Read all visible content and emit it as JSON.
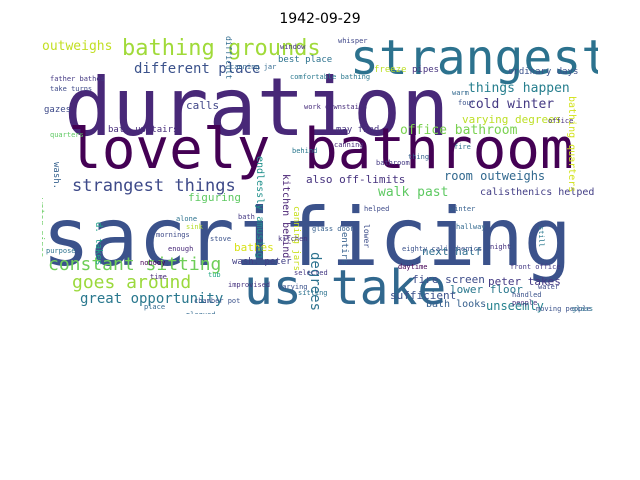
{
  "title": "1942-09-29",
  "words": [
    {
      "text": "sacrificing",
      "color": "#3b528b"
    },
    {
      "text": "duration",
      "color": "#482878"
    },
    {
      "text": "lovely bathroom",
      "color": "#440154"
    },
    {
      "text": "us take",
      "color": "#31688e"
    },
    {
      "text": "strangest",
      "color": "#2c728e"
    },
    {
      "text": "bathing grounds",
      "color": "#a0da39"
    },
    {
      "text": "strangest things",
      "color": "#3e4a89"
    },
    {
      "text": "constant sitting",
      "color": "#6ece58"
    },
    {
      "text": "goes around",
      "color": "#9bd93c"
    },
    {
      "text": "great opportunity",
      "color": "#2a788e"
    },
    {
      "text": "different place",
      "color": "#3b528b"
    },
    {
      "text": "outweighs",
      "color": "#c2df23"
    },
    {
      "text": "things happen",
      "color": "#277f8e"
    },
    {
      "text": "cold winter",
      "color": "#443983"
    },
    {
      "text": "office bathroom",
      "color": "#7ad151"
    },
    {
      "text": "room outweighs",
      "color": "#31688e"
    },
    {
      "text": "walk past",
      "color": "#5ec962"
    },
    {
      "text": "also off-limits",
      "color": "#46327e"
    },
    {
      "text": "unseemly",
      "color": "#26828e"
    },
    {
      "text": "since none",
      "color": "#3e4a89"
    },
    {
      "text": "degrees",
      "color": "#2c728e"
    },
    {
      "text": "varying degrees",
      "color": "#bddf26"
    },
    {
      "text": "may find",
      "color": "#46327e"
    },
    {
      "text": "bath upstairs",
      "color": "#472d7b"
    },
    {
      "text": "calls",
      "color": "#404688"
    },
    {
      "text": "figuring",
      "color": "#5ec962"
    },
    {
      "text": "bathes",
      "color": "#d8e219"
    },
    {
      "text": "next half",
      "color": "#2e6e8e"
    },
    {
      "text": "fire screen",
      "color": "#3d4d8a"
    },
    {
      "text": "lower floor",
      "color": "#2a788e"
    },
    {
      "text": "peter takes",
      "color": "#443983"
    },
    {
      "text": "bath looks",
      "color": "#355f8d"
    },
    {
      "text": "sufficient",
      "color": "#3b528b"
    },
    {
      "text": "calisthenics helped",
      "color": "#433e85"
    },
    {
      "text": "grounds",
      "color": "#22a884"
    },
    {
      "text": "turns making",
      "color": "#3e4a89"
    },
    {
      "text": "wash. peter",
      "color": "#424086"
    },
    {
      "text": "best place",
      "color": "#2c728e"
    },
    {
      "text": "ordinary days",
      "color": "#3b528b"
    },
    {
      "text": "gazes",
      "color": "#3e4a89"
    },
    {
      "text": "pipes",
      "color": "#46327e"
    },
    {
      "text": "freeze",
      "color": "#bddf26"
    },
    {
      "text": "water pipes",
      "color": "#65cb5e"
    },
    {
      "text": "kitchen behind",
      "color": "#482173"
    },
    {
      "text": "endlessly amusing",
      "color": "#21918c"
    },
    {
      "text": "canning jars",
      "color": "#c8e020"
    },
    {
      "text": "bathing quarters",
      "color": "#d2e21b"
    },
    {
      "text": "entire",
      "color": "#355f8d"
    },
    {
      "text": "lower",
      "color": "#3d4e8a"
    },
    {
      "text": "d. takes",
      "color": "#1fa188"
    },
    {
      "text": "wash.",
      "color": "#34608d"
    },
    {
      "text": "difficult",
      "color": "#2f6b8e"
    },
    {
      "text": "stove",
      "color": "#3b528b"
    },
    {
      "text": "bath",
      "color": "#443983"
    },
    {
      "text": "sink",
      "color": "#b5de2b"
    },
    {
      "text": "whisper",
      "color": "#3f4788"
    },
    {
      "text": "window",
      "color": "#46337f"
    },
    {
      "text": "fire",
      "color": "#2d708e"
    },
    {
      "text": "chamber pot",
      "color": "#3b528b"
    },
    {
      "text": "hallway",
      "color": "#31688e"
    },
    {
      "text": "daytime",
      "color": "#440154"
    },
    {
      "text": "quarters",
      "color": "#5ec962"
    },
    {
      "text": "front office",
      "color": "#443983"
    },
    {
      "text": "warm",
      "color": "#31688e"
    },
    {
      "text": "four",
      "color": "#3b528b"
    },
    {
      "text": "tub",
      "color": "#22a884"
    },
    {
      "text": "mornings",
      "color": "#3e4a89"
    },
    {
      "text": "people",
      "color": "#46327e"
    },
    {
      "text": "alone",
      "color": "#2c728e"
    },
    {
      "text": "plagued",
      "color": "#31688e"
    },
    {
      "text": "selected",
      "color": "#443983"
    },
    {
      "text": "varying",
      "color": "#3b528b"
    },
    {
      "text": "office",
      "color": "#472d7b"
    },
    {
      "text": "still",
      "color": "#2a788e"
    },
    {
      "text": "enough",
      "color": "#482878"
    },
    {
      "text": "thing",
      "color": "#355f8d"
    },
    {
      "text": "water",
      "color": "#3e4a89"
    },
    {
      "text": "sitting",
      "color": "#2c728e"
    },
    {
      "text": "nobody",
      "color": "#440154"
    },
    {
      "text": "handled",
      "color": "#3b528b"
    },
    {
      "text": "problem",
      "color": "#31688e"
    },
    {
      "text": "kitchen",
      "color": "#46327e"
    },
    {
      "text": "canning",
      "color": "#482878"
    },
    {
      "text": "behind",
      "color": "#2a788e"
    },
    {
      "text": "bathroom",
      "color": "#443983"
    },
    {
      "text": "helped",
      "color": "#3e4a89"
    },
    {
      "text": "winter",
      "color": "#355f8d"
    },
    {
      "text": "moving people",
      "color": "#3b528b"
    },
    {
      "text": "glass",
      "color": "#2c728e"
    },
    {
      "text": "place",
      "color": "#31688e"
    },
    {
      "text": "night",
      "color": "#46327e"
    },
    {
      "text": "time",
      "color": "#482878"
    },
    {
      "text": "ten times",
      "color": "#3b528b"
    },
    {
      "text": "father bathes",
      "color": "#443983"
    },
    {
      "text": "take turns",
      "color": "#3e4a89"
    },
    {
      "text": "work downstairs",
      "color": "#472d7b"
    },
    {
      "text": "comfortable bathing",
      "color": "#2a788e"
    },
    {
      "text": "canning jar",
      "color": "#31688e"
    },
    {
      "text": "eighty calisthenics",
      "color": "#3b528b"
    },
    {
      "text": "glass door",
      "color": "#355f8d"
    },
    {
      "text": "improvised",
      "color": "#46327e"
    },
    {
      "text": "purpose",
      "color": "#2c728e"
    }
  ]
}
